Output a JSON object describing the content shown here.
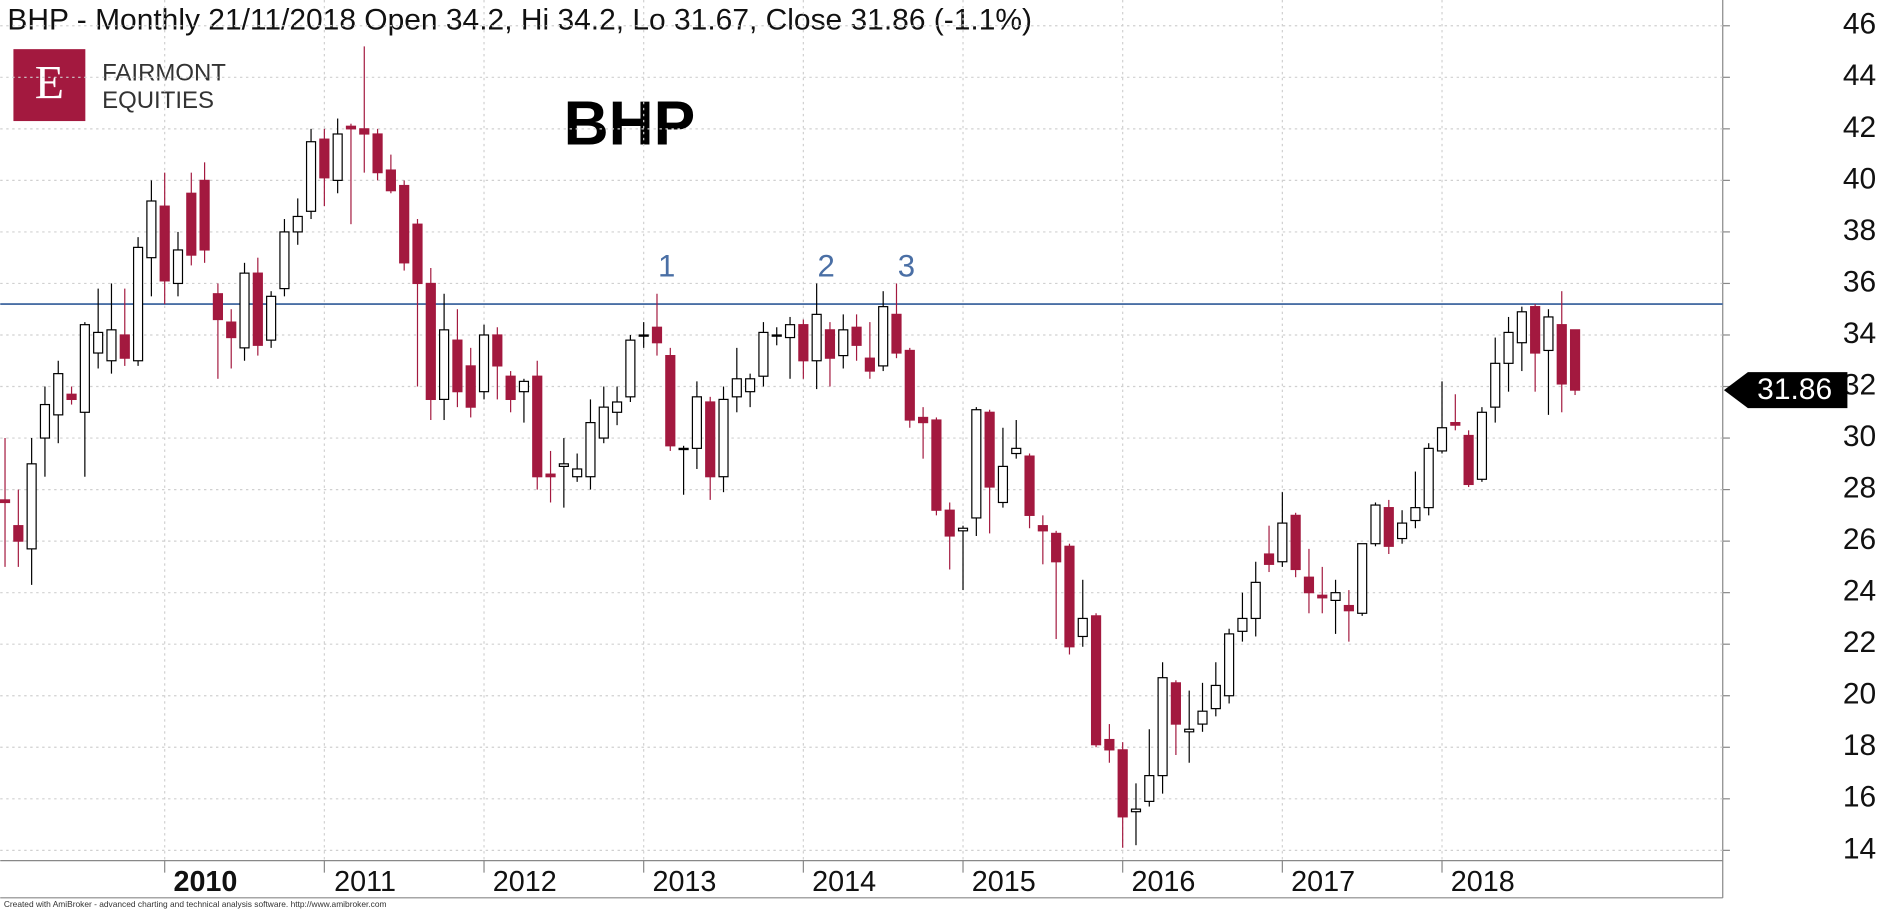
{
  "chart_data": {
    "type": "candlestick",
    "title": "BHP - Monthly 21/11/2018 Open 34.2, Hi 34.2, Lo 31.67, Close 31.86 (-1.1%)",
    "label": "BHP",
    "logo": {
      "mark": "E",
      "lines": [
        "FAIRMONT",
        "EQUITIES"
      ]
    },
    "footer": "Created with AmiBroker - advanced charting and technical analysis software. http://www.amibroker.com",
    "categories": [
      null,
      null,
      null,
      null,
      null,
      null,
      null,
      null,
      null,
      null,
      null,
      null,
      "2010",
      null,
      null,
      null,
      null,
      null,
      null,
      null,
      null,
      null,
      null,
      null,
      "2011",
      null,
      null,
      null,
      null,
      null,
      null,
      null,
      null,
      null,
      null,
      null,
      "2012",
      null,
      null,
      null,
      null,
      null,
      null,
      null,
      null,
      null,
      null,
      null,
      "2013",
      null,
      null,
      null,
      null,
      null,
      null,
      null,
      null,
      null,
      null,
      null,
      "2014",
      null,
      null,
      null,
      null,
      null,
      null,
      null,
      null,
      null,
      null,
      null,
      "2015",
      null,
      null,
      null,
      null,
      null,
      null,
      null,
      null,
      null,
      null,
      null,
      "2016",
      null,
      null,
      null,
      null,
      null,
      null,
      null,
      null,
      null,
      null,
      null,
      "2017",
      null,
      null,
      null,
      null,
      null,
      null,
      null,
      null,
      null,
      null,
      null,
      "2018",
      null,
      null,
      null,
      null,
      null,
      null,
      null,
      null,
      null,
      null
    ],
    "ohlc": {
      "open": [
        27.6,
        26.6,
        25.7,
        30,
        30.9,
        31.7,
        31,
        33.3,
        33,
        34,
        33,
        37,
        39,
        36,
        39.5,
        40,
        35.6,
        34.5,
        33.5,
        36.4,
        33.8,
        35.8,
        38,
        38.8,
        41.6,
        40,
        42.1,
        42,
        41.8,
        40.4,
        39.8,
        38.3,
        36,
        31.5,
        33.8,
        32.8,
        31.8,
        34,
        32.4,
        31.8,
        32.4,
        28.6,
        28.9,
        28.5,
        28.5,
        30,
        31,
        31.6,
        34,
        34.3,
        33.2,
        29.6,
        29.6,
        31.4,
        28.5,
        31.6,
        31.8,
        32.4,
        34,
        33.9,
        34.4,
        33,
        34.2,
        33.2,
        34.3,
        33.1,
        32.8,
        34.8,
        33.4,
        30.8,
        30.7,
        27.2,
        26.4,
        26.9,
        31,
        27.5,
        29.4,
        29.3,
        26.6,
        26.3,
        25.8,
        22.3,
        23.1,
        18.3,
        17.9,
        15.5,
        15.9,
        16.9,
        20.5,
        18.6,
        18.9,
        19.5,
        20,
        22.5,
        23,
        25.5,
        25.2,
        27,
        24.6,
        23.9,
        23.7,
        23.5,
        23.2,
        25.9,
        27.3,
        26.1,
        26.8,
        27.3,
        29.5,
        30.6,
        30.1,
        28.4,
        31.2,
        32.9,
        33.7,
        35.1,
        33.4,
        34.4,
        34.2
      ],
      "high": [
        30,
        28,
        30,
        32,
        33,
        32,
        34.5,
        35.8,
        36,
        35.8,
        37.8,
        40,
        40.3,
        38,
        40.3,
        40.7,
        36,
        35,
        36.8,
        37,
        35.7,
        38.5,
        39.3,
        42,
        42,
        42.4,
        42.2,
        45.2,
        42,
        41,
        40,
        38.5,
        36.6,
        35.6,
        35,
        33.5,
        34.4,
        34.3,
        32.6,
        32.3,
        33,
        29.5,
        30,
        29.4,
        31.5,
        32,
        32,
        34,
        34.5,
        35.6,
        33.5,
        29.7,
        32.2,
        31.6,
        32,
        33.5,
        32.5,
        34.5,
        34.3,
        34.7,
        34.6,
        36,
        34.5,
        34.8,
        34.8,
        34.5,
        35.7,
        36,
        33.5,
        31.2,
        30.8,
        27.5,
        26.6,
        31.2,
        31.1,
        30.4,
        30.7,
        29.4,
        27,
        26.4,
        25.9,
        24.5,
        23.2,
        18.9,
        18.2,
        16.6,
        18.7,
        21.3,
        20.6,
        20.2,
        20.5,
        21.3,
        22.6,
        24,
        25.2,
        26.6,
        27.9,
        27.1,
        25.7,
        25,
        24.5,
        24.1,
        25.9,
        27.5,
        27.6,
        27.2,
        28.7,
        29.8,
        32.2,
        31.7,
        30.3,
        31.2,
        33.9,
        34.7,
        35.1,
        35.2,
        35,
        35.7,
        34.2
      ],
      "low": [
        25,
        25,
        24.3,
        28.5,
        29.8,
        31.3,
        28.5,
        32.7,
        32.5,
        32.8,
        32.8,
        35.5,
        35.2,
        35.5,
        36.7,
        36.8,
        32.3,
        32.7,
        33,
        33.2,
        33.5,
        35.5,
        37.5,
        38.5,
        39,
        39.5,
        38.3,
        40.3,
        40,
        39.5,
        36.5,
        32,
        30.7,
        30.7,
        31.2,
        30.8,
        31.5,
        31.5,
        31,
        30.6,
        28,
        27.5,
        27.3,
        28.3,
        28,
        29.8,
        30.5,
        31.4,
        33.5,
        33.2,
        29.5,
        27.8,
        28.8,
        27.6,
        27.9,
        31,
        31.2,
        32,
        33.6,
        32.3,
        32.3,
        31.9,
        32,
        32.7,
        33,
        32.3,
        32.6,
        33.1,
        30.4,
        29.2,
        27,
        24.9,
        24.1,
        26.2,
        26.3,
        27.3,
        29.2,
        26.5,
        25.1,
        22.2,
        21.6,
        21.9,
        18,
        17.4,
        14.1,
        14.2,
        15.7,
        16.2,
        17.7,
        17.4,
        18.6,
        19.2,
        19.7,
        22.1,
        22.3,
        24.8,
        25,
        24.6,
        23.2,
        23.2,
        22.4,
        22.1,
        23.1,
        25.8,
        25.5,
        25.9,
        26.5,
        27,
        29.4,
        30.3,
        28.1,
        28.3,
        30.6,
        31.8,
        32.6,
        31.8,
        30.9,
        31,
        31.67
      ],
      "close": [
        27.5,
        26,
        29,
        31.3,
        32.5,
        31.5,
        34.4,
        34.1,
        34.2,
        33.1,
        37.4,
        39.2,
        36.1,
        37.3,
        37.1,
        37.3,
        34.6,
        33.9,
        36.4,
        33.6,
        35.5,
        38,
        38.6,
        41.5,
        40.1,
        41.8,
        42,
        41.8,
        40.3,
        39.6,
        36.8,
        36,
        31.5,
        34.2,
        31.8,
        31.2,
        34,
        32.8,
        31.5,
        32.2,
        28.5,
        28.5,
        29,
        28.8,
        30.6,
        31.2,
        31.4,
        33.8,
        34,
        33.7,
        29.7,
        29.6,
        31.6,
        28.5,
        31.5,
        32.3,
        32.3,
        34.1,
        34,
        34.4,
        33,
        34.8,
        33.1,
        34.2,
        33.6,
        32.6,
        35.1,
        33.3,
        30.7,
        30.6,
        27.2,
        26.2,
        26.5,
        31.1,
        28.1,
        28.9,
        29.6,
        27,
        26.4,
        25.2,
        21.9,
        23,
        18.1,
        17.9,
        15.3,
        15.6,
        16.9,
        20.7,
        18.9,
        18.7,
        19.4,
        20.4,
        22.4,
        23,
        24.4,
        25.1,
        26.7,
        24.9,
        24,
        23.8,
        24,
        23.3,
        25.9,
        27.4,
        25.8,
        26.7,
        27.3,
        29.6,
        30.4,
        30.5,
        28.2,
        31,
        32.9,
        34.1,
        34.9,
        33.3,
        34.7,
        32.1,
        31.86
      ]
    },
    "up_color": "#ffffff",
    "down_color": "#a3193f",
    "hline": {
      "value": 35.2,
      "color": "#4a6fa5"
    },
    "annotations": [
      "1",
      "2",
      "3"
    ],
    "annotation_color": "#4a6fa5",
    "ylim": [
      13.6,
      47
    ],
    "yticks": [
      14,
      16,
      18,
      20,
      22,
      24,
      26,
      28,
      30,
      32,
      34,
      36,
      38,
      40,
      42,
      44,
      46
    ],
    "grid": true
  }
}
